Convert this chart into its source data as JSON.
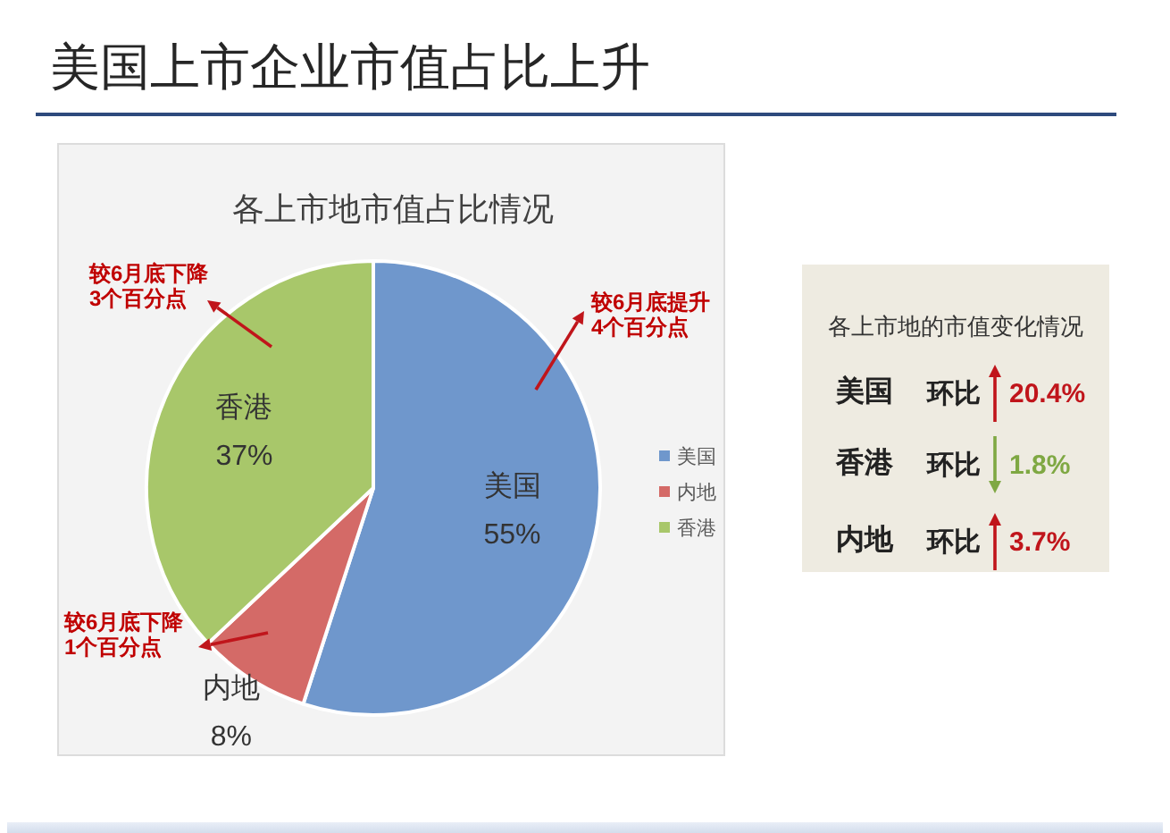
{
  "chart_data": [
    {
      "type": "pie",
      "title": "美国上市企业市值占比上升",
      "subtitle": "各上市地市值占比情况",
      "categories": [
        "美国",
        "内地",
        "香港"
      ],
      "values": [
        55,
        8,
        37
      ],
      "value_labels": [
        "55%",
        "8%",
        "37%"
      ],
      "colors": [
        "#6f97cc",
        "#d46a67",
        "#a8c76a"
      ],
      "legend": "right",
      "annotations": [
        "较6月底提升\n4个百分点",
        "较6月底下降\n1个百分点",
        "较6月底下降\n3个百分点"
      ]
    },
    {
      "type": "other",
      "title": "各上市地的市值变化情况",
      "annotations": [
        "美国",
        "环比",
        "20.4%",
        "香港",
        "环比",
        "1.8%",
        "内地",
        "环比",
        "3.7%"
      ]
    }
  ]
}
